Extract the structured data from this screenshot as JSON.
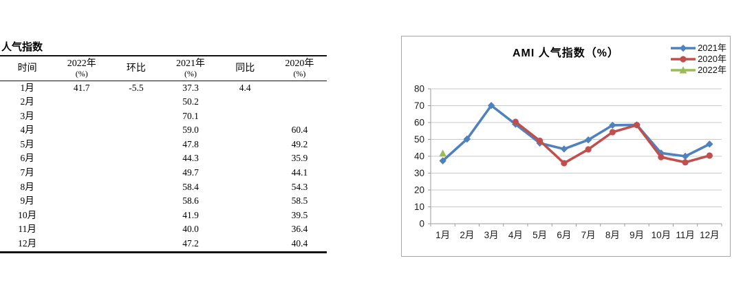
{
  "table": {
    "title": "人气指数",
    "columns": [
      {
        "label": "时间",
        "sub": ""
      },
      {
        "label": "2022年",
        "sub": "(%)"
      },
      {
        "label": "环比",
        "sub": ""
      },
      {
        "label": "2021年",
        "sub": "(%)"
      },
      {
        "label": "同比",
        "sub": ""
      },
      {
        "label": "2020年",
        "sub": "(%)"
      }
    ],
    "rows": [
      {
        "time": "1月",
        "y2022": "41.7",
        "huanbi": "-5.5",
        "y2021": "37.3",
        "tongbi": "4.4",
        "y2020": ""
      },
      {
        "time": "2月",
        "y2022": "",
        "huanbi": "",
        "y2021": "50.2",
        "tongbi": "",
        "y2020": ""
      },
      {
        "time": "3月",
        "y2022": "",
        "huanbi": "",
        "y2021": "70.1",
        "tongbi": "",
        "y2020": ""
      },
      {
        "time": "4月",
        "y2022": "",
        "huanbi": "",
        "y2021": "59.0",
        "tongbi": "",
        "y2020": "60.4"
      },
      {
        "time": "5月",
        "y2022": "",
        "huanbi": "",
        "y2021": "47.8",
        "tongbi": "",
        "y2020": "49.2"
      },
      {
        "time": "6月",
        "y2022": "",
        "huanbi": "",
        "y2021": "44.3",
        "tongbi": "",
        "y2020": "35.9"
      },
      {
        "time": "7月",
        "y2022": "",
        "huanbi": "",
        "y2021": "49.7",
        "tongbi": "",
        "y2020": "44.1"
      },
      {
        "time": "8月",
        "y2022": "",
        "huanbi": "",
        "y2021": "58.4",
        "tongbi": "",
        "y2020": "54.3"
      },
      {
        "time": "9月",
        "y2022": "",
        "huanbi": "",
        "y2021": "58.6",
        "tongbi": "",
        "y2020": "58.5"
      },
      {
        "time": "10月",
        "y2022": "",
        "huanbi": "",
        "y2021": "41.9",
        "tongbi": "",
        "y2020": "39.5"
      },
      {
        "time": "11月",
        "y2022": "",
        "huanbi": "",
        "y2021": "40.0",
        "tongbi": "",
        "y2020": "36.4"
      },
      {
        "time": "12月",
        "y2022": "",
        "huanbi": "",
        "y2021": "47.2",
        "tongbi": "",
        "y2020": "40.4"
      }
    ]
  },
  "chart_data": {
    "type": "line",
    "title": "AMI 人气指数（%）",
    "categories": [
      "1月",
      "2月",
      "3月",
      "4月",
      "5月",
      "6月",
      "7月",
      "8月",
      "9月",
      "10月",
      "11月",
      "12月"
    ],
    "series": [
      {
        "name": "2021年",
        "color": "#4F81BD",
        "marker": "diamond",
        "values": [
          37.3,
          50.2,
          70.1,
          59.0,
          47.8,
          44.3,
          49.7,
          58.4,
          58.6,
          41.9,
          40.0,
          47.2
        ]
      },
      {
        "name": "2020年",
        "color": "#C0504D",
        "marker": "circle",
        "values": [
          null,
          null,
          null,
          60.4,
          49.2,
          35.9,
          44.1,
          54.3,
          58.5,
          39.5,
          36.4,
          40.4
        ]
      },
      {
        "name": "2022年",
        "color": "#9BBB59",
        "marker": "triangle",
        "values": [
          41.7,
          null,
          null,
          null,
          null,
          null,
          null,
          null,
          null,
          null,
          null,
          null
        ]
      }
    ],
    "ylim": [
      0,
      80
    ],
    "ytick_step": 10,
    "yticks": [
      0,
      10,
      20,
      30,
      40,
      50,
      60,
      70,
      80
    ],
    "grid": true,
    "legend_position": "top-right",
    "colors": {
      "grid": "#c9c9c9",
      "axis": "#9a9a9a",
      "text": "#1a1a1a"
    }
  }
}
